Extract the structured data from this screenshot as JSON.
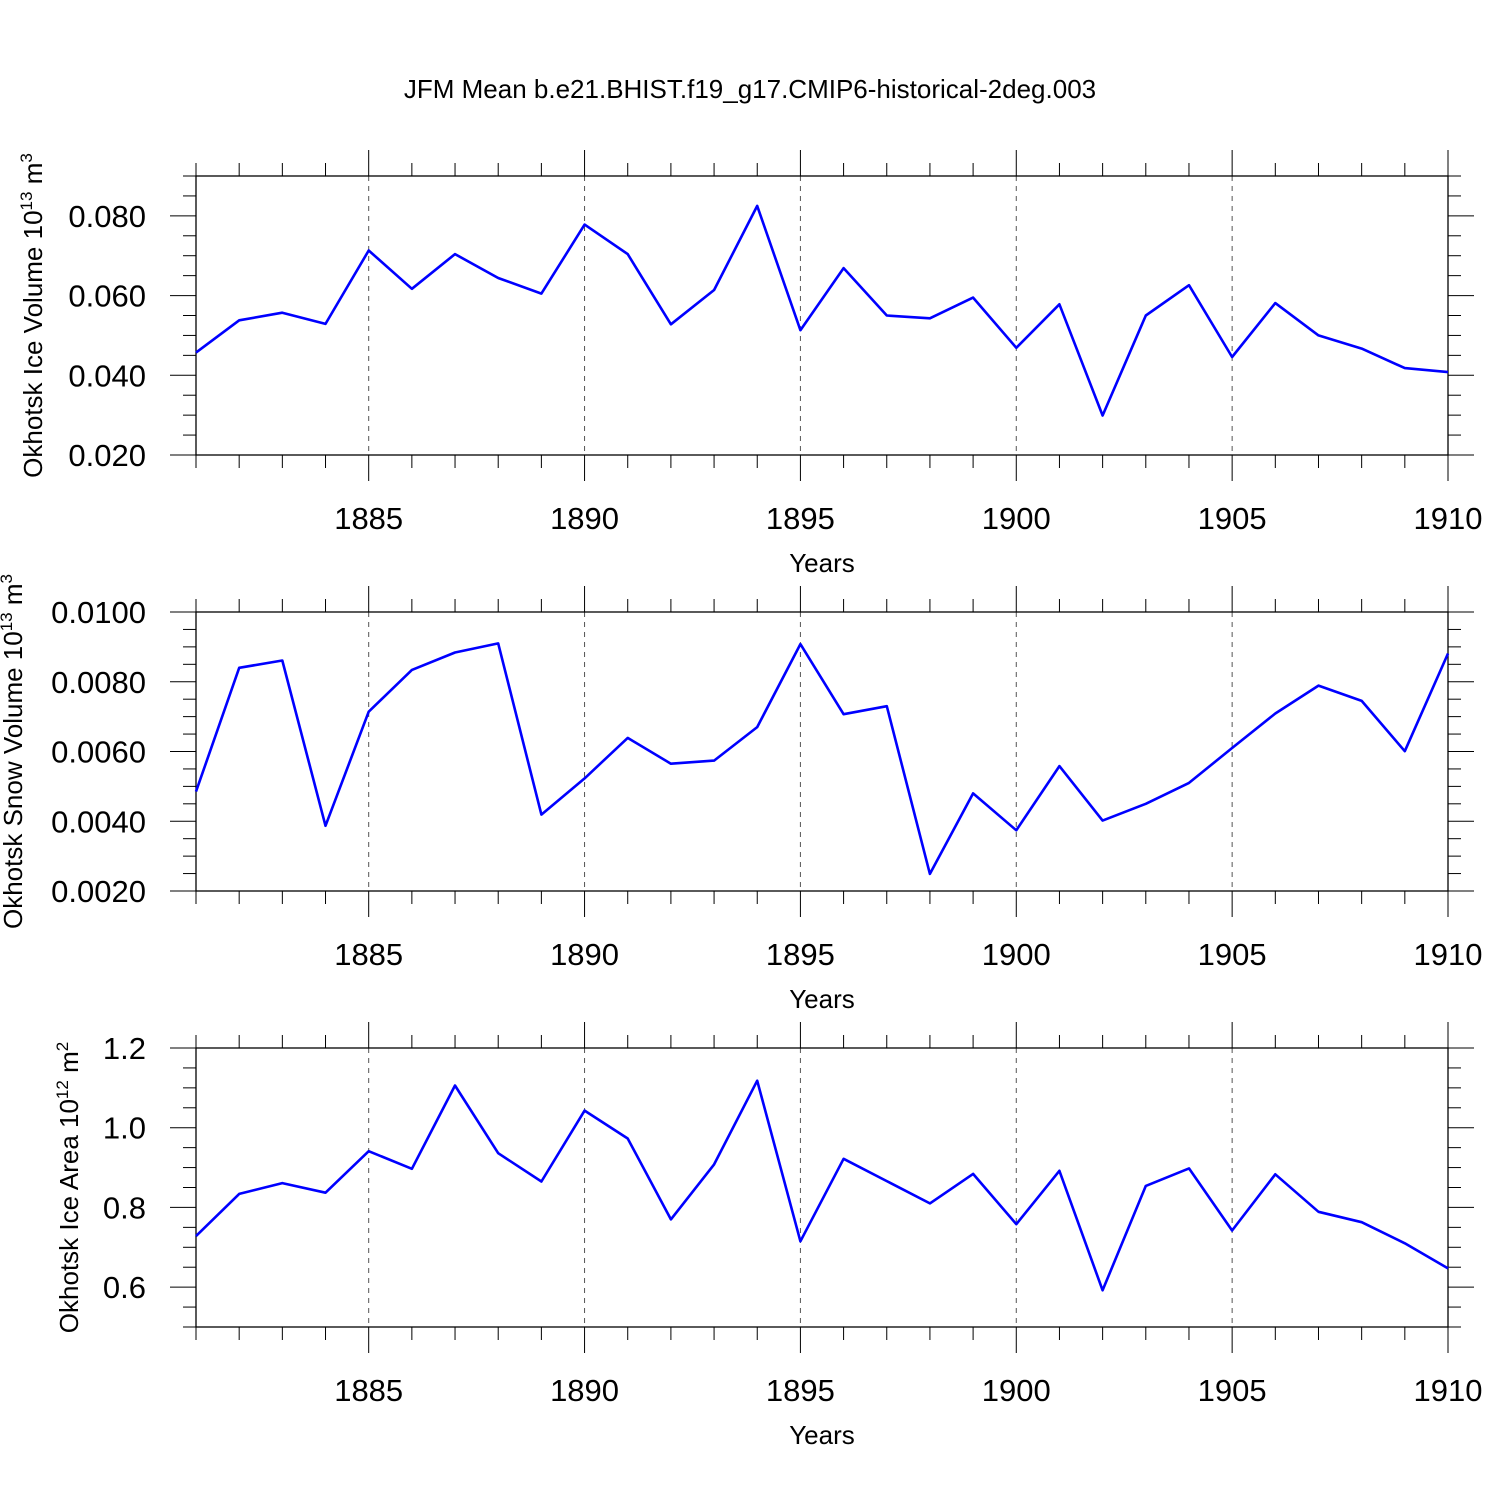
{
  "title": "JFM Mean b.e21.BHIST.f19_g17.CMIP6-historical-2deg.003",
  "colors": {
    "line": "#0000ff",
    "axis": "#000000",
    "grid": "#555555"
  },
  "chart_data": [
    {
      "type": "line",
      "title": "JFM Mean b.e21.BHIST.f19_g17.CMIP6-historical-2deg.003",
      "xlabel": "Years",
      "ylabel": {
        "text": "Okhotsk Ice Volume 10",
        "exp": "13",
        "unit": " m",
        "unit_exp": "3"
      },
      "xlim": [
        1881,
        1910
      ],
      "ylim": [
        0.02,
        0.09
      ],
      "xticks": [
        "1885",
        "1890",
        "1895",
        "1900",
        "1905",
        "1910"
      ],
      "yticks": [
        "0.020",
        "0.040",
        "0.060",
        "0.080"
      ],
      "x": [
        1881,
        1882,
        1883,
        1884,
        1885,
        1886,
        1887,
        1888,
        1889,
        1890,
        1891,
        1892,
        1893,
        1894,
        1895,
        1896,
        1897,
        1898,
        1899,
        1900,
        1901,
        1902,
        1903,
        1904,
        1905,
        1906,
        1907,
        1908,
        1909,
        1910
      ],
      "series": [
        {
          "name": "Okhotsk Ice Volume",
          "values": [
            0.0457,
            0.0538,
            0.0557,
            0.0529,
            0.0713,
            0.0617,
            0.0704,
            0.0644,
            0.0605,
            0.0778,
            0.0704,
            0.0528,
            0.0614,
            0.0825,
            0.0513,
            0.0669,
            0.055,
            0.0543,
            0.0595,
            0.0469,
            0.0578,
            0.0299,
            0.055,
            0.0626,
            0.0446,
            0.0581,
            0.05,
            0.0467,
            0.0418,
            0.0408
          ]
        }
      ]
    },
    {
      "type": "line",
      "xlabel": "Years",
      "ylabel": {
        "text": "Okhotsk Snow Volume 10",
        "exp": "13",
        "unit": " m",
        "unit_exp": "3"
      },
      "xlim": [
        1881,
        1910
      ],
      "ylim": [
        0.002,
        0.01
      ],
      "xticks": [
        "1885",
        "1890",
        "1895",
        "1900",
        "1905",
        "1910"
      ],
      "yticks": [
        "0.0020",
        "0.0040",
        "0.0060",
        "0.0080",
        "0.0100"
      ],
      "x": [
        1881,
        1882,
        1883,
        1884,
        1885,
        1886,
        1887,
        1888,
        1889,
        1890,
        1891,
        1892,
        1893,
        1894,
        1895,
        1896,
        1897,
        1898,
        1899,
        1900,
        1901,
        1902,
        1903,
        1904,
        1905,
        1906,
        1907,
        1908,
        1909,
        1910
      ],
      "series": [
        {
          "name": "Okhotsk Snow Volume",
          "values": [
            0.00485,
            0.0084,
            0.00861,
            0.00387,
            0.00714,
            0.00834,
            0.00884,
            0.0091,
            0.00419,
            0.00523,
            0.00639,
            0.00565,
            0.00574,
            0.0067,
            0.00908,
            0.00707,
            0.0073,
            0.00249,
            0.0048,
            0.00374,
            0.00558,
            0.00402,
            0.0045,
            0.0051,
            0.0061,
            0.00709,
            0.00789,
            0.00745,
            0.00601,
            0.00881
          ]
        }
      ]
    },
    {
      "type": "line",
      "xlabel": "Years",
      "ylabel": {
        "text": "Okhotsk Ice Area 10",
        "exp": "12",
        "unit": " m",
        "unit_exp": "2"
      },
      "xlim": [
        1881,
        1910
      ],
      "ylim": [
        0.5,
        1.2
      ],
      "xticks": [
        "1885",
        "1890",
        "1895",
        "1900",
        "1905",
        "1910"
      ],
      "yticks": [
        "0.6",
        "0.8",
        "1.0",
        "1.2"
      ],
      "x": [
        1881,
        1882,
        1883,
        1884,
        1885,
        1886,
        1887,
        1888,
        1889,
        1890,
        1891,
        1892,
        1893,
        1894,
        1895,
        1896,
        1897,
        1898,
        1899,
        1900,
        1901,
        1902,
        1903,
        1904,
        1905,
        1906,
        1907,
        1908,
        1909,
        1910
      ],
      "series": [
        {
          "name": "Okhotsk Ice Area",
          "values": [
            0.728,
            0.834,
            0.861,
            0.837,
            0.941,
            0.897,
            1.106,
            0.936,
            0.865,
            1.043,
            0.973,
            0.77,
            0.908,
            1.118,
            0.715,
            0.922,
            0.866,
            0.81,
            0.884,
            0.758,
            0.892,
            0.592,
            0.854,
            0.898,
            0.742,
            0.883,
            0.789,
            0.763,
            0.71,
            0.647
          ]
        }
      ]
    }
  ]
}
